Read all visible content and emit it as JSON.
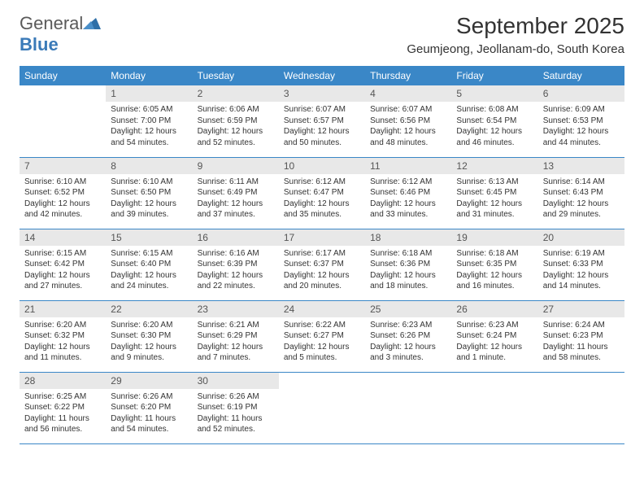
{
  "logo": {
    "text_part1": "General",
    "text_part2": "Blue",
    "triangle_color": "#2e6fa8"
  },
  "header": {
    "month_title": "September 2025",
    "location": "Geumjeong, Jeollanam-do, South Korea"
  },
  "colors": {
    "header_bg": "#3a87c7",
    "header_text": "#ffffff",
    "daynum_bg": "#e8e8e8",
    "daynum_text": "#555555",
    "body_text": "#333333",
    "row_border": "#3a87c7",
    "page_bg": "#ffffff"
  },
  "weekdays": [
    "Sunday",
    "Monday",
    "Tuesday",
    "Wednesday",
    "Thursday",
    "Friday",
    "Saturday"
  ],
  "weeks": [
    [
      {
        "blank": true
      },
      {
        "day": "1",
        "sunrise": "Sunrise: 6:05 AM",
        "sunset": "Sunset: 7:00 PM",
        "daylight": "Daylight: 12 hours and 54 minutes."
      },
      {
        "day": "2",
        "sunrise": "Sunrise: 6:06 AM",
        "sunset": "Sunset: 6:59 PM",
        "daylight": "Daylight: 12 hours and 52 minutes."
      },
      {
        "day": "3",
        "sunrise": "Sunrise: 6:07 AM",
        "sunset": "Sunset: 6:57 PM",
        "daylight": "Daylight: 12 hours and 50 minutes."
      },
      {
        "day": "4",
        "sunrise": "Sunrise: 6:07 AM",
        "sunset": "Sunset: 6:56 PM",
        "daylight": "Daylight: 12 hours and 48 minutes."
      },
      {
        "day": "5",
        "sunrise": "Sunrise: 6:08 AM",
        "sunset": "Sunset: 6:54 PM",
        "daylight": "Daylight: 12 hours and 46 minutes."
      },
      {
        "day": "6",
        "sunrise": "Sunrise: 6:09 AM",
        "sunset": "Sunset: 6:53 PM",
        "daylight": "Daylight: 12 hours and 44 minutes."
      }
    ],
    [
      {
        "day": "7",
        "sunrise": "Sunrise: 6:10 AM",
        "sunset": "Sunset: 6:52 PM",
        "daylight": "Daylight: 12 hours and 42 minutes."
      },
      {
        "day": "8",
        "sunrise": "Sunrise: 6:10 AM",
        "sunset": "Sunset: 6:50 PM",
        "daylight": "Daylight: 12 hours and 39 minutes."
      },
      {
        "day": "9",
        "sunrise": "Sunrise: 6:11 AM",
        "sunset": "Sunset: 6:49 PM",
        "daylight": "Daylight: 12 hours and 37 minutes."
      },
      {
        "day": "10",
        "sunrise": "Sunrise: 6:12 AM",
        "sunset": "Sunset: 6:47 PM",
        "daylight": "Daylight: 12 hours and 35 minutes."
      },
      {
        "day": "11",
        "sunrise": "Sunrise: 6:12 AM",
        "sunset": "Sunset: 6:46 PM",
        "daylight": "Daylight: 12 hours and 33 minutes."
      },
      {
        "day": "12",
        "sunrise": "Sunrise: 6:13 AM",
        "sunset": "Sunset: 6:45 PM",
        "daylight": "Daylight: 12 hours and 31 minutes."
      },
      {
        "day": "13",
        "sunrise": "Sunrise: 6:14 AM",
        "sunset": "Sunset: 6:43 PM",
        "daylight": "Daylight: 12 hours and 29 minutes."
      }
    ],
    [
      {
        "day": "14",
        "sunrise": "Sunrise: 6:15 AM",
        "sunset": "Sunset: 6:42 PM",
        "daylight": "Daylight: 12 hours and 27 minutes."
      },
      {
        "day": "15",
        "sunrise": "Sunrise: 6:15 AM",
        "sunset": "Sunset: 6:40 PM",
        "daylight": "Daylight: 12 hours and 24 minutes."
      },
      {
        "day": "16",
        "sunrise": "Sunrise: 6:16 AM",
        "sunset": "Sunset: 6:39 PM",
        "daylight": "Daylight: 12 hours and 22 minutes."
      },
      {
        "day": "17",
        "sunrise": "Sunrise: 6:17 AM",
        "sunset": "Sunset: 6:37 PM",
        "daylight": "Daylight: 12 hours and 20 minutes."
      },
      {
        "day": "18",
        "sunrise": "Sunrise: 6:18 AM",
        "sunset": "Sunset: 6:36 PM",
        "daylight": "Daylight: 12 hours and 18 minutes."
      },
      {
        "day": "19",
        "sunrise": "Sunrise: 6:18 AM",
        "sunset": "Sunset: 6:35 PM",
        "daylight": "Daylight: 12 hours and 16 minutes."
      },
      {
        "day": "20",
        "sunrise": "Sunrise: 6:19 AM",
        "sunset": "Sunset: 6:33 PM",
        "daylight": "Daylight: 12 hours and 14 minutes."
      }
    ],
    [
      {
        "day": "21",
        "sunrise": "Sunrise: 6:20 AM",
        "sunset": "Sunset: 6:32 PM",
        "daylight": "Daylight: 12 hours and 11 minutes."
      },
      {
        "day": "22",
        "sunrise": "Sunrise: 6:20 AM",
        "sunset": "Sunset: 6:30 PM",
        "daylight": "Daylight: 12 hours and 9 minutes."
      },
      {
        "day": "23",
        "sunrise": "Sunrise: 6:21 AM",
        "sunset": "Sunset: 6:29 PM",
        "daylight": "Daylight: 12 hours and 7 minutes."
      },
      {
        "day": "24",
        "sunrise": "Sunrise: 6:22 AM",
        "sunset": "Sunset: 6:27 PM",
        "daylight": "Daylight: 12 hours and 5 minutes."
      },
      {
        "day": "25",
        "sunrise": "Sunrise: 6:23 AM",
        "sunset": "Sunset: 6:26 PM",
        "daylight": "Daylight: 12 hours and 3 minutes."
      },
      {
        "day": "26",
        "sunrise": "Sunrise: 6:23 AM",
        "sunset": "Sunset: 6:24 PM",
        "daylight": "Daylight: 12 hours and 1 minute."
      },
      {
        "day": "27",
        "sunrise": "Sunrise: 6:24 AM",
        "sunset": "Sunset: 6:23 PM",
        "daylight": "Daylight: 11 hours and 58 minutes."
      }
    ],
    [
      {
        "day": "28",
        "sunrise": "Sunrise: 6:25 AM",
        "sunset": "Sunset: 6:22 PM",
        "daylight": "Daylight: 11 hours and 56 minutes."
      },
      {
        "day": "29",
        "sunrise": "Sunrise: 6:26 AM",
        "sunset": "Sunset: 6:20 PM",
        "daylight": "Daylight: 11 hours and 54 minutes."
      },
      {
        "day": "30",
        "sunrise": "Sunrise: 6:26 AM",
        "sunset": "Sunset: 6:19 PM",
        "daylight": "Daylight: 11 hours and 52 minutes."
      },
      {
        "blank": true
      },
      {
        "blank": true
      },
      {
        "blank": true
      },
      {
        "blank": true
      }
    ]
  ]
}
